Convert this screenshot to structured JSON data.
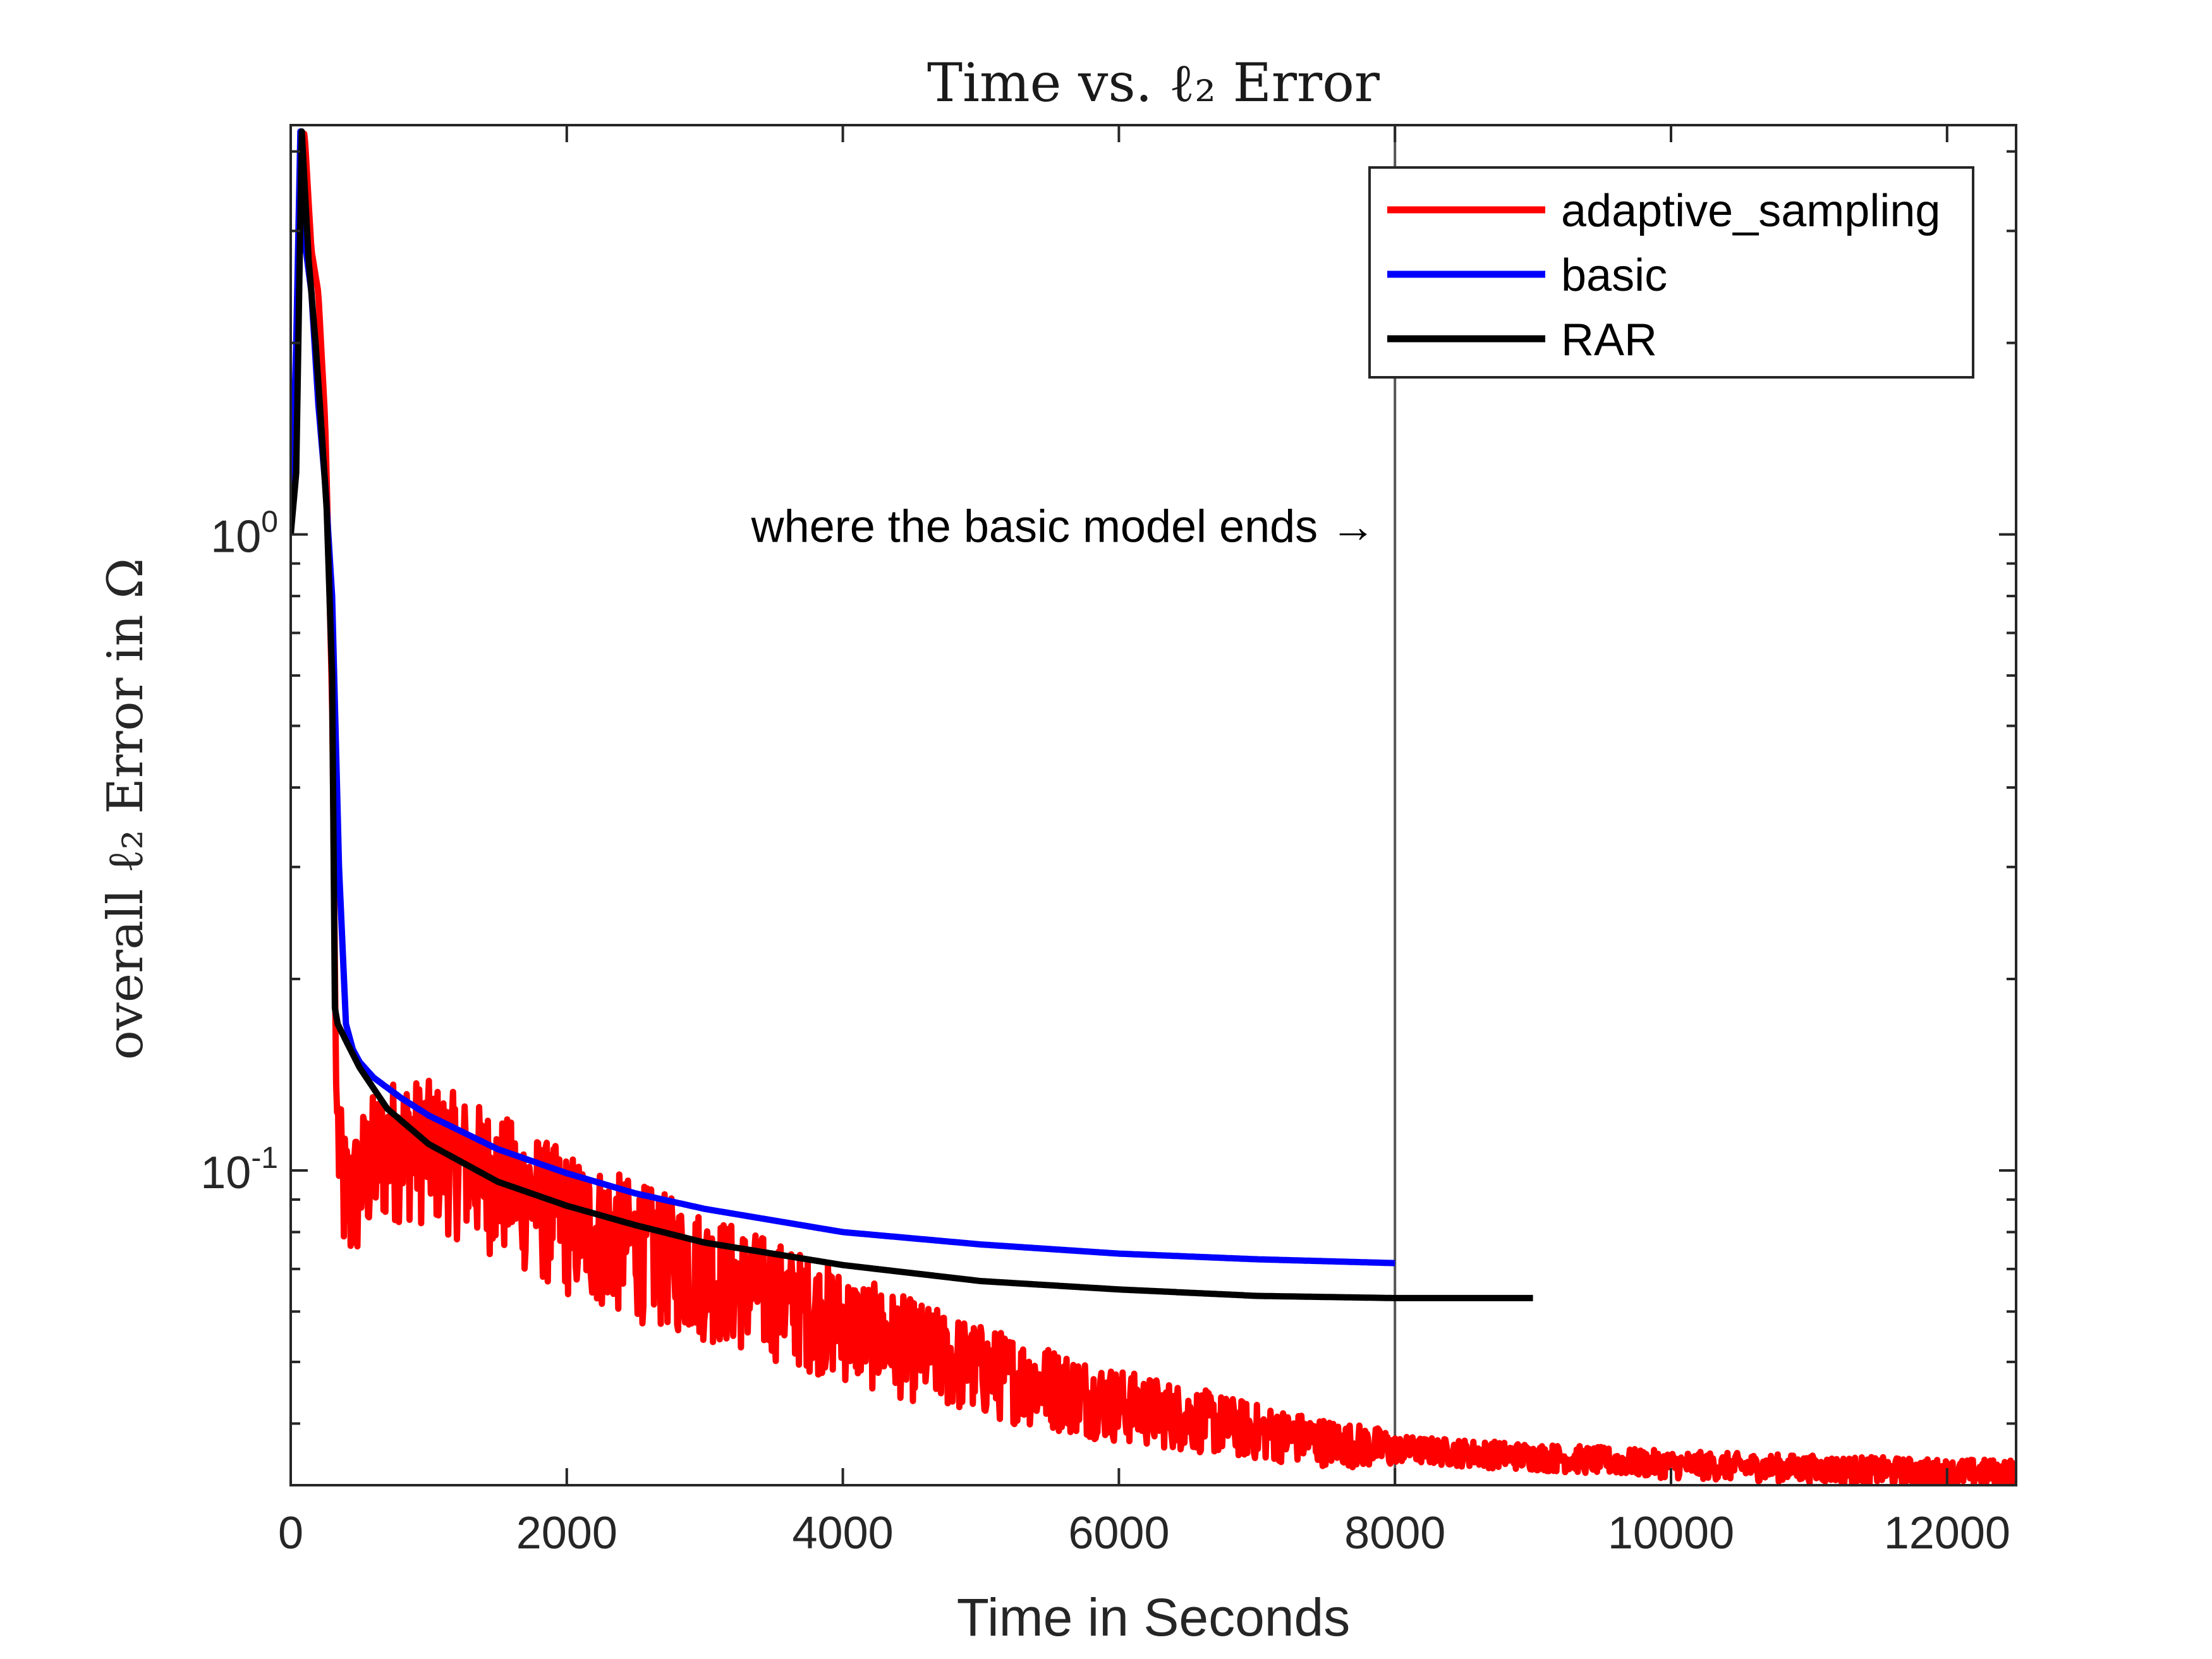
{
  "chart_data": {
    "type": "line",
    "title": "Time vs. ℓ₂ Error",
    "xlabel": "Time in Seconds",
    "ylabel": "overall ℓ₂ Error in Ω",
    "xscale": "linear",
    "yscale": "log",
    "xlim": [
      0,
      12500
    ],
    "ylim": [
      0.032,
      4.4
    ],
    "xticks": [
      0,
      2000,
      4000,
      6000,
      8000,
      10000,
      12000
    ],
    "xtick_labels": [
      "0",
      "2000",
      "4000",
      "6000",
      "8000",
      "10000",
      "12000"
    ],
    "yticks": [
      {
        "value": 1,
        "base": "10",
        "exp": "0"
      },
      {
        "value": 0.1,
        "base": "10",
        "exp": "-1"
      }
    ],
    "grid": false,
    "legend_position": "top-right",
    "annotation": {
      "text": "where the basic model ends →",
      "x": 8000,
      "y": 1.0,
      "vline_x": 8000
    },
    "series": [
      {
        "name": "adaptive_sampling",
        "color": "#ff0000",
        "noisy": true,
        "x": [
          0,
          40,
          70,
          100,
          150,
          200,
          250,
          300,
          330,
          360,
          400,
          450,
          500,
          600,
          700,
          800,
          1000,
          1200,
          1500,
          1800,
          2000,
          2500,
          3000,
          3500,
          4000,
          4500,
          5000,
          5500,
          6000,
          6500,
          7000,
          7500,
          8000,
          9000,
          10000,
          11000,
          12000,
          12500
        ],
        "y": [
          1.0,
          1.6,
          3.8,
          4.3,
          2.8,
          2.4,
          1.5,
          0.55,
          0.13,
          0.1,
          0.092,
          0.09,
          0.098,
          0.105,
          0.11,
          0.112,
          0.11,
          0.105,
          0.098,
          0.09,
          0.085,
          0.077,
          0.07,
          0.064,
          0.058,
          0.053,
          0.049,
          0.046,
          0.043,
          0.041,
          0.039,
          0.0375,
          0.0365,
          0.0355,
          0.0345,
          0.034,
          0.0335,
          0.0335
        ]
      },
      {
        "name": "basic",
        "color": "#0000ff",
        "noisy": false,
        "x": [
          0,
          40,
          70,
          110,
          150,
          200,
          250,
          300,
          350,
          400,
          450,
          500,
          600,
          800,
          1000,
          1500,
          2000,
          2500,
          3000,
          4000,
          5000,
          6000,
          7000,
          8000
        ],
        "y": [
          1.0,
          2.0,
          4.3,
          2.8,
          2.4,
          1.6,
          1.2,
          0.8,
          0.3,
          0.17,
          0.155,
          0.148,
          0.14,
          0.13,
          0.122,
          0.108,
          0.099,
          0.092,
          0.087,
          0.08,
          0.0765,
          0.074,
          0.0725,
          0.0715
        ]
      },
      {
        "name": "RAR",
        "color": "#000000",
        "noisy": false,
        "x": [
          0,
          40,
          80,
          130,
          180,
          220,
          260,
          300,
          320,
          340,
          400,
          500,
          700,
          1000,
          1500,
          2000,
          2500,
          3000,
          4000,
          5000,
          6000,
          7000,
          8000,
          9000
        ],
        "y": [
          1.0,
          1.25,
          4.3,
          2.7,
          2.0,
          1.5,
          1.1,
          0.6,
          0.18,
          0.17,
          0.16,
          0.145,
          0.125,
          0.11,
          0.096,
          0.088,
          0.082,
          0.077,
          0.071,
          0.067,
          0.065,
          0.0635,
          0.063,
          0.063
        ]
      }
    ]
  }
}
